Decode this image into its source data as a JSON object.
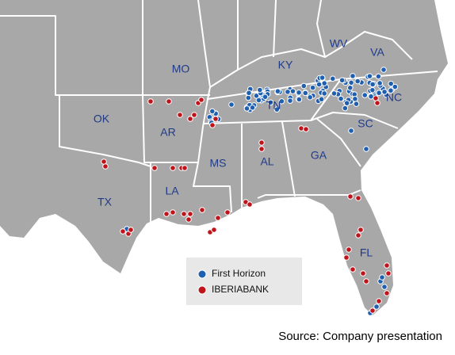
{
  "map": {
    "state_labels": [
      "MO",
      "KY",
      "WV",
      "VA",
      "OK",
      "AR",
      "TN",
      "NC",
      "SC",
      "MS",
      "AL",
      "GA",
      "TX",
      "LA",
      "FL"
    ],
    "legend": [
      {
        "name": "First Horizon",
        "color": "#1f5fb0"
      },
      {
        "name": "IBERIABANK",
        "color": "#c0141c"
      }
    ],
    "source": "Source: Company presentation"
  }
}
